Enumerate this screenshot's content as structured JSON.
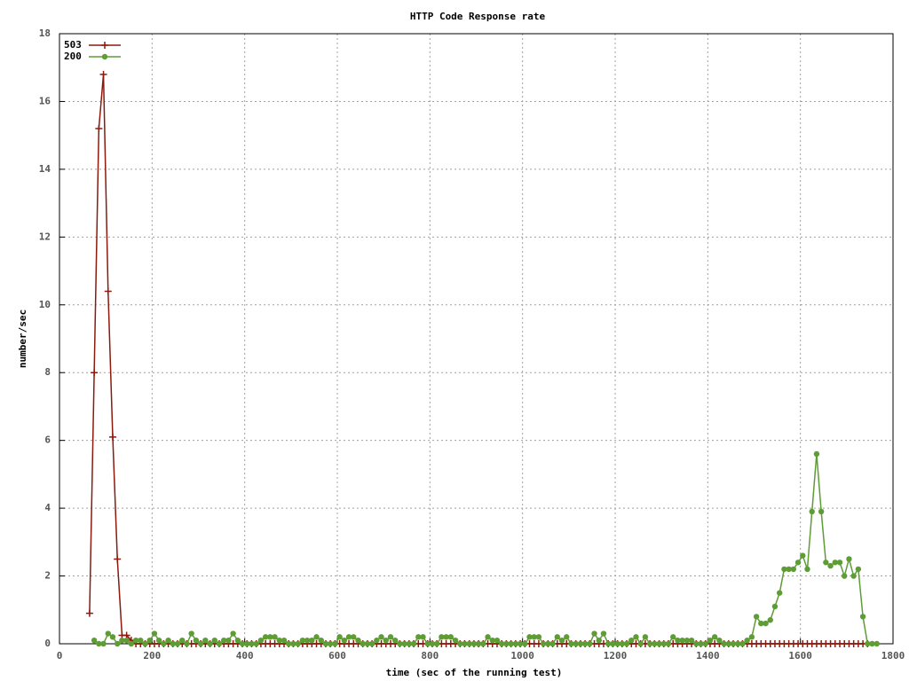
{
  "chart_data": {
    "type": "line",
    "title": "HTTP Code Response rate",
    "xlabel": "time (sec of the running test)",
    "ylabel": "number/sec",
    "xlim": [
      0,
      1800
    ],
    "xticks": [
      0,
      200,
      400,
      600,
      800,
      1000,
      1200,
      1400,
      1600,
      1800
    ],
    "ylim": [
      0,
      18
    ],
    "yticks": [
      0,
      2,
      4,
      6,
      8,
      10,
      12,
      14,
      16,
      18
    ],
    "grid": true,
    "legend": "top-left",
    "x": [
      65,
      75,
      85,
      95,
      105,
      115,
      125,
      135,
      145,
      155,
      165,
      175,
      185,
      195,
      205,
      215,
      225,
      235,
      245,
      255,
      265,
      275,
      285,
      295,
      305,
      315,
      325,
      335,
      345,
      355,
      365,
      375,
      385,
      395,
      405,
      415,
      425,
      435,
      445,
      455,
      465,
      475,
      485,
      495,
      505,
      515,
      525,
      535,
      545,
      555,
      565,
      575,
      585,
      595,
      605,
      615,
      625,
      635,
      645,
      655,
      665,
      675,
      685,
      695,
      705,
      715,
      725,
      735,
      745,
      755,
      765,
      775,
      785,
      795,
      805,
      815,
      825,
      835,
      845,
      855,
      865,
      875,
      885,
      895,
      905,
      915,
      925,
      935,
      945,
      955,
      965,
      975,
      985,
      995,
      1005,
      1015,
      1025,
      1035,
      1045,
      1055,
      1065,
      1075,
      1085,
      1095,
      1105,
      1115,
      1125,
      1135,
      1145,
      1155,
      1165,
      1175,
      1185,
      1195,
      1205,
      1215,
      1225,
      1235,
      1245,
      1255,
      1265,
      1275,
      1285,
      1295,
      1305,
      1315,
      1325,
      1335,
      1345,
      1355,
      1365,
      1375,
      1385,
      1395,
      1405,
      1415,
      1425,
      1435,
      1445,
      1455,
      1465,
      1475,
      1485,
      1495,
      1505,
      1515,
      1525,
      1535,
      1545,
      1555,
      1565,
      1575,
      1585,
      1595,
      1605,
      1615,
      1625,
      1635,
      1645,
      1655,
      1665,
      1675,
      1685,
      1695,
      1705,
      1715,
      1725,
      1735,
      1745,
      1755,
      1765
    ],
    "series": [
      {
        "name": "503",
        "color": "#8b1a0e",
        "marker": "plus",
        "values": [
          0.9,
          8,
          15.2,
          16.8,
          10.4,
          6.1,
          2.5,
          0.25,
          0.25,
          0.1,
          0,
          0,
          0,
          0,
          0,
          0,
          0,
          0,
          0,
          0,
          0,
          0,
          0,
          0,
          0,
          0,
          0,
          0,
          0,
          0,
          0,
          0,
          0,
          0,
          0,
          0,
          0,
          0,
          0,
          0,
          0,
          0,
          0,
          0,
          0,
          0,
          0,
          0,
          0,
          0,
          0,
          0,
          0,
          0,
          0,
          0,
          0,
          0,
          0,
          0,
          0,
          0,
          0,
          0,
          0,
          0,
          0,
          0,
          0,
          0,
          0,
          0,
          0,
          0,
          0,
          0,
          0,
          0,
          0,
          0,
          0,
          0,
          0,
          0,
          0,
          0,
          0,
          0,
          0,
          0,
          0,
          0,
          0,
          0,
          0,
          0,
          0,
          0,
          0,
          0,
          0,
          0,
          0,
          0,
          0,
          0,
          0,
          0,
          0,
          0,
          0,
          0,
          0,
          0,
          0,
          0,
          0,
          0,
          0,
          0,
          0,
          0,
          0,
          0,
          0,
          0,
          0,
          0,
          0,
          0,
          0,
          0,
          0,
          0,
          0,
          0,
          0,
          0,
          0,
          0,
          0,
          0,
          0,
          0,
          0,
          0,
          0,
          0,
          0,
          0,
          0,
          0,
          0,
          0,
          0,
          0,
          0,
          0,
          0,
          0,
          0,
          0,
          0,
          0,
          0,
          0,
          0,
          0,
          0,
          null,
          null
        ]
      },
      {
        "name": "200",
        "color": "#5e9c36",
        "marker": "circle",
        "values": [
          null,
          0.1,
          0,
          0,
          0.3,
          0.2,
          0,
          0.1,
          0.1,
          0,
          0.1,
          0.1,
          0,
          0.1,
          0.3,
          0.1,
          0,
          0.1,
          0,
          0,
          0.1,
          0,
          0.3,
          0.1,
          0,
          0.1,
          0,
          0.1,
          0,
          0.1,
          0.1,
          0.3,
          0.1,
          0,
          0,
          0,
          0,
          0.1,
          0.2,
          0.2,
          0.2,
          0.1,
          0.1,
          0,
          0,
          0,
          0.1,
          0.1,
          0.1,
          0.2,
          0.1,
          0,
          0,
          0,
          0.2,
          0.1,
          0.2,
          0.2,
          0.1,
          0,
          0,
          0,
          0.1,
          0.2,
          0.1,
          0.2,
          0.1,
          0,
          0,
          0,
          0,
          0.2,
          0.2,
          0,
          0,
          0,
          0.2,
          0.2,
          0.2,
          0.1,
          0,
          0,
          0,
          0,
          0,
          0,
          0.2,
          0.1,
          0.1,
          0,
          0,
          0,
          0,
          0,
          0,
          0.2,
          0.2,
          0.2,
          0,
          0,
          0,
          0.2,
          0.1,
          0.2,
          0,
          0,
          0,
          0,
          0,
          0.3,
          0.1,
          0.3,
          0,
          0,
          0,
          0,
          0,
          0.1,
          0.2,
          0,
          0.2,
          0,
          0,
          0,
          0,
          0,
          0.2,
          0.1,
          0.1,
          0.1,
          0.1,
          0,
          0,
          0,
          0.1,
          0.2,
          0.1,
          0,
          0,
          0,
          0,
          0,
          0.1,
          0.2,
          0.8,
          0.6,
          0.6,
          0.7,
          1.1,
          1.5,
          2.2,
          2.2,
          2.2,
          2.4,
          2.6,
          2.2,
          3.9,
          5.6,
          3.9,
          2.4,
          2.3,
          2.4,
          2.4,
          2.0,
          2.5,
          2.0,
          2.2,
          0.8,
          0,
          0,
          0
        ]
      }
    ]
  }
}
